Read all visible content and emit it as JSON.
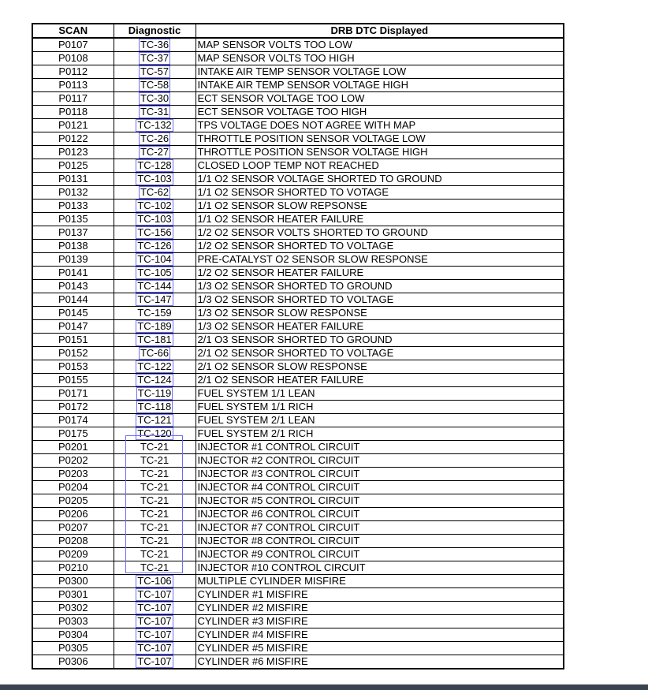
{
  "headers": [
    "SCAN",
    "Diagnostic",
    "DRB DTC Displayed"
  ],
  "link_color": "#6d6dfa",
  "rows": [
    [
      "P0107",
      "TC-36",
      "MAP SENSOR VOLTS TOO LOW",
      true
    ],
    [
      "P0108",
      "TC-37",
      "MAP SENSOR VOLTS TOO HIGH",
      true
    ],
    [
      "P0112",
      "TC-57",
      "INTAKE AIR TEMP SENSOR VOLTAGE LOW",
      true
    ],
    [
      "P0113",
      "TC-58",
      "INTAKE AIR TEMP SENSOR VOLTAGE HIGH",
      true
    ],
    [
      "P0117",
      "TC-30",
      "ECT SENSOR VOLTAGE TOO LOW",
      true
    ],
    [
      "P0118",
      "TC-31",
      "ECT SENSOR VOLTAGE TOO HIGH",
      true
    ],
    [
      "P0121",
      "TC-132",
      "TPS VOLTAGE DOES NOT AGREE WITH MAP",
      true
    ],
    [
      "P0122",
      "TC-26",
      "THROTTLE POSITION SENSOR VOLTAGE LOW",
      true
    ],
    [
      "P0123",
      "TC-27",
      "THROTTLE POSITION SENSOR VOLTAGE HIGH",
      true
    ],
    [
      "P0125",
      "TC-128",
      "CLOSED LOOP TEMP NOT REACHED",
      true
    ],
    [
      "P0131",
      "TC-103",
      "1/1 O2 SENSOR VOLTAGE SHORTED TO GROUND",
      true
    ],
    [
      "P0132",
      "TC-62",
      "1/1 O2 SENSOR SHORTED TO VOTAGE",
      true
    ],
    [
      "P0133",
      "TC-102",
      "1/1 O2 SENSOR SLOW REPSONSE",
      true
    ],
    [
      "P0135",
      "TC-103",
      "1/1 O2 SENSOR HEATER FAILURE",
      true
    ],
    [
      "P0137",
      "TC-156",
      "1/2 O2 SENSOR VOLTS SHORTED TO GROUND",
      true
    ],
    [
      "P0138",
      "TC-126",
      "1/2 O2 SENSOR SHORTED TO VOLTAGE",
      true
    ],
    [
      "P0139",
      "TC-104",
      "PRE-CATALYST O2 SENSOR SLOW RESPONSE",
      true
    ],
    [
      "P0141",
      "TC-105",
      "1/2 O2 SENSOR HEATER FAILURE",
      true
    ],
    [
      "P0143",
      "TC-144",
      "1/3 O2 SENSOR SHORTED TO GROUND",
      true
    ],
    [
      "P0144",
      "TC-147",
      "1/3 O2 SENSOR SHORTED TO VOLTAGE",
      true
    ],
    [
      "P0145",
      "TC-159",
      "1/3 O2 SENSOR SLOW RESPONSE",
      false
    ],
    [
      "P0147",
      "TC-189",
      "1/3 O2 SENSOR HEATER FAILURE",
      true
    ],
    [
      "P0151",
      "TC-181",
      "2/1 O3 SENSOR SHORTED TO GROUND",
      true
    ],
    [
      "P0152",
      "TC-66",
      "2/1 O2 SENSOR SHORTED TO VOLTAGE",
      true
    ],
    [
      "P0153",
      "TC-122",
      "2/1 O2 SENSOR SLOW RESPONSE",
      true
    ],
    [
      "P0155",
      "TC-124",
      "2/1 O2 SENSOR HEATER FAILURE",
      true
    ],
    [
      "P0171",
      "TC-119",
      "FUEL SYSTEM 1/1 LEAN",
      true
    ],
    [
      "P0172",
      "TC-118",
      "FUEL SYSTEM 1/1 RICH",
      true
    ],
    [
      "P0174",
      "TC-121",
      "FUEL SYSTEM 2/1 LEAN",
      true
    ],
    [
      "P0175",
      "TC-120",
      "FUEL SYSTEM 2/1 RICH",
      true
    ],
    [
      "P0201",
      "TC-21",
      "INJECTOR #1 CONTROL CIRCUIT",
      false
    ],
    [
      "P0202",
      "TC-21",
      "INJECTOR #2 CONTROL CIRCUIT",
      false
    ],
    [
      "P0203",
      "TC-21",
      "INJECTOR #3 CONTROL CIRCUIT",
      false
    ],
    [
      "P0204",
      "TC-21",
      "INJECTOR #4 CONTROL CIRCUIT",
      false
    ],
    [
      "P0205",
      "TC-21",
      "INJECTOR #5 CONTROL CIRCUIT",
      false
    ],
    [
      "P0206",
      "TC-21",
      "INJECTOR #6 CONTROL CIRCUIT",
      false
    ],
    [
      "P0207",
      "TC-21",
      "INJECTOR #7 CONTROL CIRCUIT",
      false
    ],
    [
      "P0208",
      "TC-21",
      "INJECTOR #8 CONTROL CIRCUIT",
      false
    ],
    [
      "P0209",
      "TC-21",
      "INJECTOR #9 CONTROL CIRCUIT",
      false
    ],
    [
      "P0210",
      "TC-21",
      "INJECTOR #10 CONTROL CIRCUIT",
      false
    ],
    [
      "P0300",
      "TC-106",
      "MULTIPLE CYLINDER MISFIRE",
      true
    ],
    [
      "P0301",
      "TC-107",
      "CYLINDER #1 MISFIRE",
      true
    ],
    [
      "P0302",
      "TC-107",
      "CYLINDER #2 MISFIRE",
      true
    ],
    [
      "P0303",
      "TC-107",
      "CYLINDER #3 MISFIRE",
      true
    ],
    [
      "P0304",
      "TC-107",
      "CYLINDER #4 MISFIRE",
      true
    ],
    [
      "P0305",
      "TC-107",
      "CYLINDER #5 MISFIRE",
      true
    ],
    [
      "P0306",
      "TC-107",
      "CYLINDER #6 MISFIRE",
      true
    ]
  ]
}
